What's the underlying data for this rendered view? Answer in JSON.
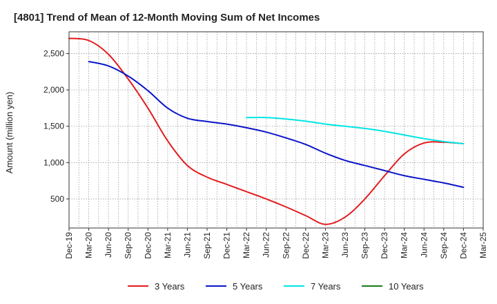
{
  "chart_data": {
    "type": "line",
    "title": "[4801]  Trend of Mean of 12-Month Moving Sum of Net Incomes",
    "xlabel": "",
    "ylabel": "Amount (million yen)",
    "categories": [
      "Dec-19",
      "Mar-20",
      "Jun-20",
      "Sep-20",
      "Dec-20",
      "Mar-21",
      "Jun-21",
      "Sep-21",
      "Dec-21",
      "Mar-22",
      "Jun-22",
      "Sep-22",
      "Dec-22",
      "Mar-23",
      "Jun-23",
      "Sep-23",
      "Dec-23",
      "Mar-24",
      "Jun-24",
      "Sep-24",
      "Dec-24",
      "Mar-25"
    ],
    "yticks": [
      500,
      1000,
      1500,
      2000,
      2500
    ],
    "ytick_labels": [
      "500",
      "1,000",
      "1,500",
      "2,000",
      "2,500"
    ],
    "ylim": [
      100,
      2800
    ],
    "grid": true,
    "legend_position": "bottom",
    "series": [
      {
        "name": "3 Years",
        "color": "#e31a1c",
        "values": [
          2710,
          2680,
          2490,
          2150,
          1750,
          1300,
          960,
          800,
          700,
          600,
          500,
          390,
          270,
          150,
          250,
          500,
          820,
          1120,
          1270,
          1280,
          1260,
          null
        ]
      },
      {
        "name": "5 Years",
        "color": "#0a14c8",
        "values": [
          null,
          2390,
          2330,
          2190,
          1990,
          1750,
          1610,
          1565,
          1530,
          1480,
          1420,
          1340,
          1250,
          1130,
          1030,
          960,
          890,
          820,
          770,
          720,
          660,
          null
        ]
      },
      {
        "name": "7 Years",
        "color": "#00e5e5",
        "values": [
          null,
          null,
          null,
          null,
          null,
          null,
          null,
          null,
          null,
          1620,
          1620,
          1600,
          1570,
          1530,
          1500,
          1470,
          1430,
          1380,
          1330,
          1290,
          1260,
          null
        ]
      },
      {
        "name": "10 Years",
        "color": "#1a7a1a",
        "values": [
          null,
          null,
          null,
          null,
          null,
          null,
          null,
          null,
          null,
          null,
          null,
          null,
          null,
          null,
          null,
          null,
          null,
          null,
          null,
          null,
          null,
          null
        ]
      }
    ]
  }
}
